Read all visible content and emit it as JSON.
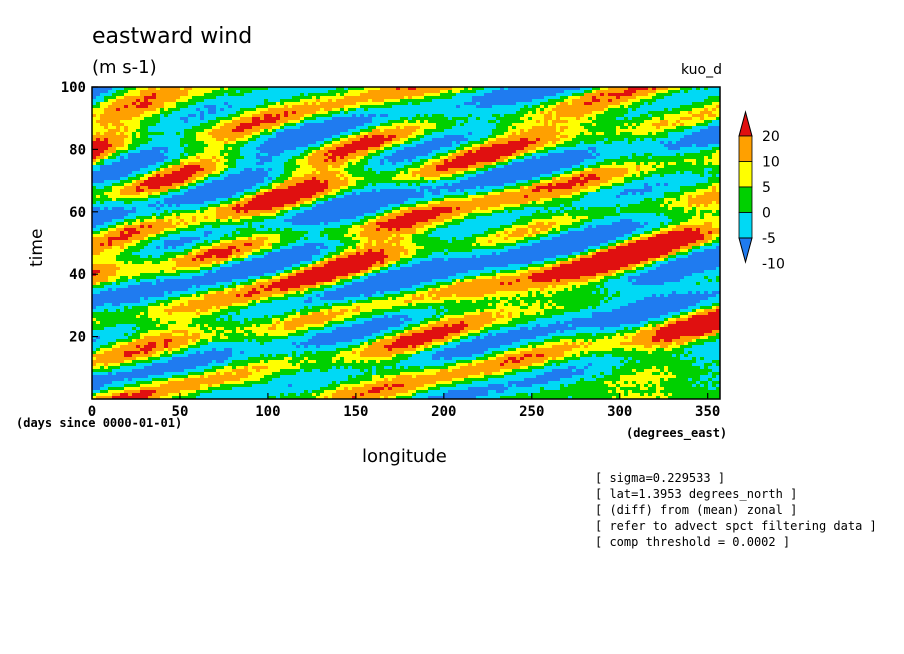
{
  "chart_data": {
    "type": "heatmap",
    "title": "eastward wind",
    "subtitle": "(m s-1)",
    "run_name": "kuo_d",
    "xlabel": "longitude",
    "xunit": "(degrees_east)",
    "ylabel": "time",
    "yunit": "(days since 0000-01-01)",
    "xlim": [
      0,
      357
    ],
    "ylim": [
      0,
      100
    ],
    "xticks": [
      "0",
      "50",
      "100",
      "150",
      "200",
      "250",
      "300",
      "350"
    ],
    "yticks": [
      "20",
      "40",
      "60",
      "80",
      "100"
    ],
    "colorbar": {
      "levels": [
        "-10",
        "-5",
        "0",
        "5",
        "10",
        "20"
      ],
      "colors": [
        "#1f7bf0",
        "#00d9f5",
        "#00d000",
        "#ffff00",
        "#ffa000",
        "#e01010"
      ],
      "extend": "both"
    },
    "notes": [
      "[ sigma=0.229533 ]",
      "[ lat=1.3953 degrees_north ]",
      "[ (diff) from (mean) zonal ]",
      "[ refer to advect spct filtering data ]",
      "[ comp threshold = 0.0002 ]"
    ]
  }
}
